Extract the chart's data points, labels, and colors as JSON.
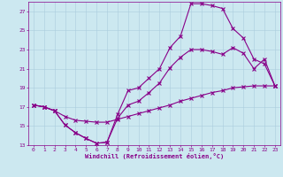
{
  "xlabel": "Windchill (Refroidissement éolien,°C)",
  "background_color": "#cce8f0",
  "line_color": "#880088",
  "xlim": [
    -0.5,
    23.5
  ],
  "ylim": [
    13,
    28
  ],
  "yticks": [
    13,
    15,
    17,
    19,
    21,
    23,
    25,
    27
  ],
  "xticks": [
    0,
    1,
    2,
    3,
    4,
    5,
    6,
    7,
    8,
    9,
    10,
    11,
    12,
    13,
    14,
    15,
    16,
    17,
    18,
    19,
    20,
    21,
    22,
    23
  ],
  "line1_x": [
    0,
    1,
    2,
    3,
    4,
    5,
    6,
    7,
    8,
    9,
    10,
    11,
    12,
    13,
    14,
    15,
    16,
    17,
    18,
    19,
    20,
    21,
    22,
    23
  ],
  "line1_y": [
    17.2,
    17.0,
    16.6,
    15.1,
    14.3,
    13.7,
    13.2,
    13.3,
    16.2,
    18.7,
    19.0,
    20.0,
    21.0,
    23.2,
    24.4,
    27.8,
    27.8,
    27.6,
    27.3,
    25.2,
    24.2,
    22.0,
    21.5,
    19.2
  ],
  "line2_x": [
    0,
    1,
    2,
    3,
    4,
    5,
    6,
    7,
    8,
    9,
    10,
    11,
    12,
    13,
    14,
    15,
    16,
    17,
    18,
    19,
    20,
    21,
    22,
    23
  ],
  "line2_y": [
    17.2,
    17.0,
    16.6,
    15.1,
    14.3,
    13.7,
    13.2,
    13.3,
    15.8,
    17.2,
    17.6,
    18.5,
    19.5,
    21.1,
    22.2,
    23.0,
    23.0,
    22.8,
    22.5,
    23.2,
    22.6,
    21.0,
    22.0,
    19.2
  ],
  "line3_x": [
    0,
    1,
    2,
    3,
    4,
    5,
    6,
    7,
    8,
    9,
    10,
    11,
    12,
    13,
    14,
    15,
    16,
    17,
    18,
    19,
    20,
    21,
    22,
    23
  ],
  "line3_y": [
    17.2,
    17.0,
    16.6,
    16.0,
    15.6,
    15.5,
    15.4,
    15.4,
    15.7,
    16.0,
    16.3,
    16.6,
    16.9,
    17.2,
    17.6,
    17.9,
    18.2,
    18.5,
    18.7,
    19.0,
    19.1,
    19.2,
    19.2,
    19.2
  ]
}
